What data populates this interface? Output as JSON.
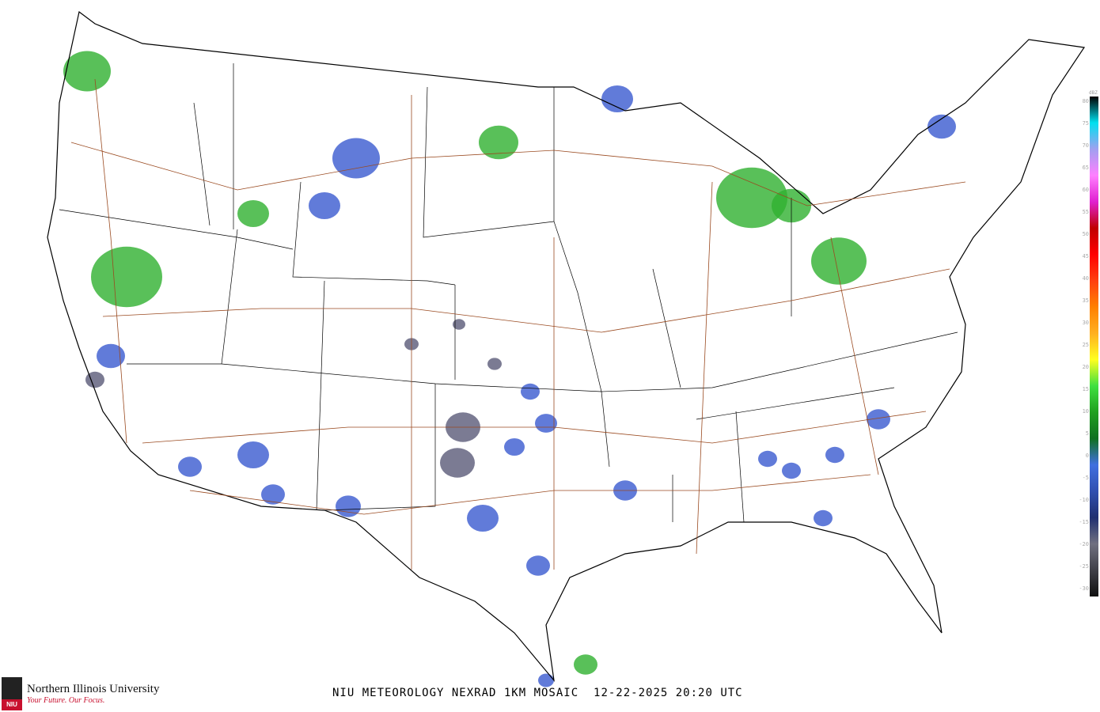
{
  "title": "NIU METEOROLOGY NEXRAD 1KM MOSAIC",
  "date": "12-22-2025",
  "time": "20:20 UTC",
  "logo": {
    "name": "Northern Illinois University",
    "tagline": "Your Future. Our Focus.",
    "mark": "NIU"
  },
  "legend": {
    "unit": "dBZ",
    "ticks": [
      "80",
      "75",
      "70",
      "65",
      "60",
      "55",
      "50",
      "45",
      "40",
      "35",
      "30",
      "25",
      "20",
      "15",
      "10",
      "5",
      "0",
      "-5",
      "-10",
      "-15",
      "-20",
      "-25",
      "-30"
    ],
    "colors": [
      "#000000",
      "#00e0f0",
      "#a0a0f0",
      "#ff80ff",
      "#e020d0",
      "#c00000",
      "#ff0000",
      "#ff4010",
      "#ff8000",
      "#ffb020",
      "#ffff20",
      "#40e040",
      "#20a020",
      "#107020",
      "#4070e0",
      "#3050b0",
      "#203070",
      "#707080",
      "#404048",
      "#101010"
    ]
  },
  "colors": {
    "coast": "#000000",
    "roads": "#9a4a20",
    "light_echo": "#5a5a78",
    "weak_echo": "#3a5ad0",
    "moderate_echo": "#30b030"
  }
}
